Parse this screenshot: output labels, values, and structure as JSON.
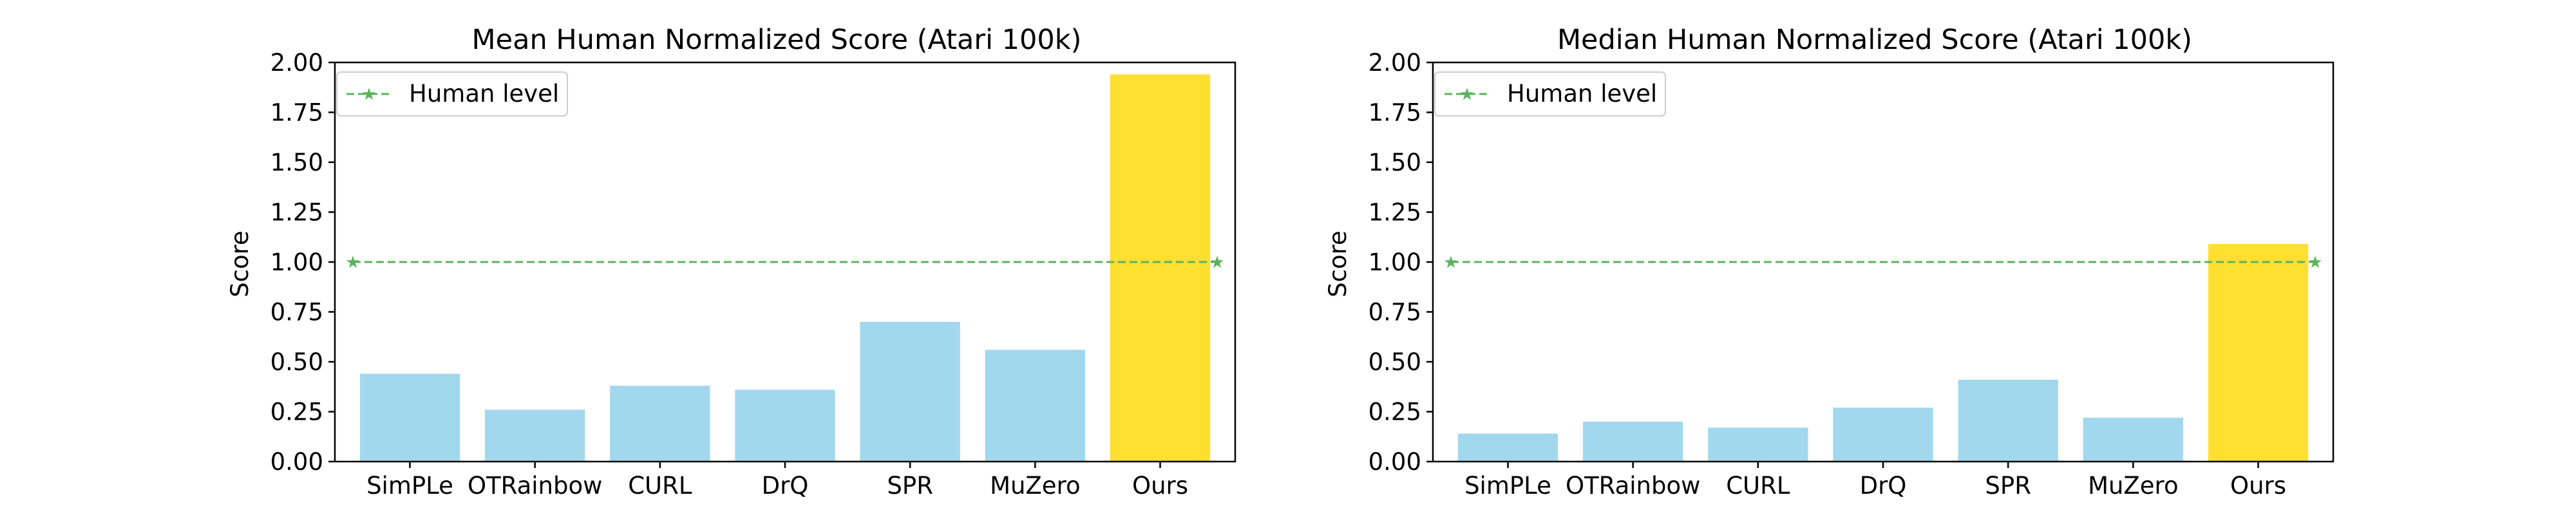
{
  "chart_data": [
    {
      "type": "bar",
      "title": "Mean Human Normalized Score (Atari 100k)",
      "xlabel": "",
      "ylabel": "Score",
      "categories": [
        "SimPLe",
        "OTRainbow",
        "CURL",
        "DrQ",
        "SPR",
        "MuZero",
        "Ours"
      ],
      "values": [
        0.44,
        0.26,
        0.38,
        0.36,
        0.7,
        0.56,
        1.94
      ],
      "highlight_index": 6,
      "ylim": [
        0,
        2.0
      ],
      "yticks": [
        "0.00",
        "0.25",
        "0.50",
        "0.75",
        "1.00",
        "1.25",
        "1.50",
        "1.75",
        "2.00"
      ],
      "reference_line": {
        "name": "Human level",
        "y": 1.0,
        "style": "dashed",
        "marker": "star"
      },
      "legend": {
        "entries": [
          "Human level"
        ],
        "placement": "upper-left"
      },
      "grid": false
    },
    {
      "type": "bar",
      "title": "Median Human Normalized Score (Atari 100k)",
      "xlabel": "",
      "ylabel": "Score",
      "categories": [
        "SimPLe",
        "OTRainbow",
        "CURL",
        "DrQ",
        "SPR",
        "MuZero",
        "Ours"
      ],
      "values": [
        0.14,
        0.2,
        0.17,
        0.27,
        0.41,
        0.22,
        1.09
      ],
      "highlight_index": 6,
      "ylim": [
        0,
        2.0
      ],
      "yticks": [
        "0.00",
        "0.25",
        "0.50",
        "0.75",
        "1.00",
        "1.25",
        "1.50",
        "1.75",
        "2.00"
      ],
      "reference_line": {
        "name": "Human level",
        "y": 1.0,
        "style": "dashed",
        "marker": "star"
      },
      "legend": {
        "entries": [
          "Human level"
        ],
        "placement": "upper-left"
      },
      "grid": false
    }
  ],
  "colors": {
    "bar": "#a2d8ee",
    "highlight_bar": "#fedf32",
    "reference_line": "#5bb35b",
    "axis": "#000000"
  }
}
